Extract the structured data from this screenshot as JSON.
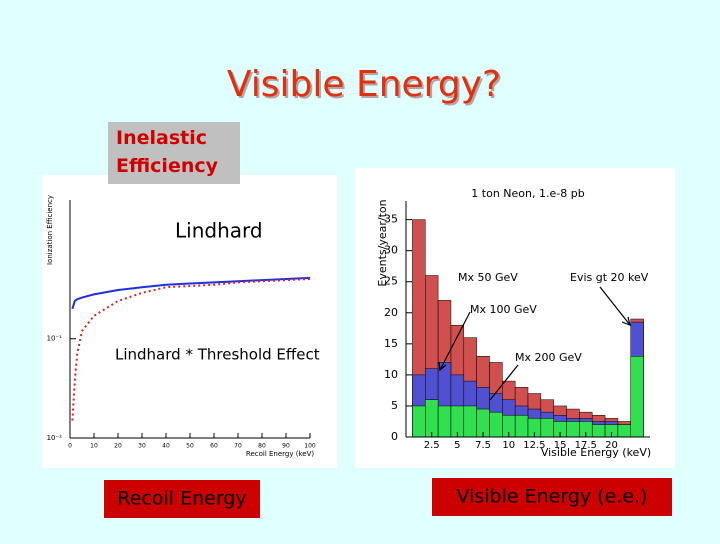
{
  "title": "Visible Energy?",
  "labels": {
    "inelastic": "Inelastic Efficiency",
    "recoil": "Recoil Energy",
    "visible": "Visible Energy (e.e.)"
  },
  "chart_data": [
    {
      "type": "line",
      "logy": true,
      "x_label": "Recoil Energy (keV)",
      "y_label": "Ionization Efficiency",
      "x": [
        1,
        2,
        3,
        5,
        10,
        20,
        30,
        40,
        50,
        60,
        70,
        80,
        90,
        100
      ],
      "series": [
        {
          "name": "Lindhard",
          "color": "#2030e0",
          "values": [
            0.2,
            0.24,
            0.25,
            0.26,
            0.28,
            0.31,
            0.33,
            0.35,
            0.36,
            0.37,
            0.38,
            0.39,
            0.4,
            0.41
          ]
        },
        {
          "name": "Lindhard * Threshold Effect",
          "color": "#e02020",
          "values": [
            0.015,
            0.038,
            0.07,
            0.12,
            0.17,
            0.24,
            0.29,
            0.33,
            0.34,
            0.35,
            0.37,
            0.38,
            0.39,
            0.4
          ]
        }
      ],
      "xlim": [
        0,
        100
      ],
      "xticks": [
        0,
        10,
        20,
        30,
        40,
        50,
        60,
        70,
        80,
        90,
        100
      ],
      "ylim": [
        0.01,
        2.5
      ],
      "yticks": [
        {
          "value": 0.01,
          "label": "10⁻²"
        },
        {
          "value": 0.1,
          "label": "10⁻¹"
        }
      ]
    },
    {
      "type": "histogram",
      "title": "1 ton Neon, 1.e-8 pb",
      "x_label": "Visible Energy (keV)",
      "y_label": "Events/year/ton",
      "bins": [
        0.625,
        1.875,
        3.125,
        4.375,
        5.625,
        6.875,
        8.125,
        9.375,
        10.625,
        11.875,
        13.125,
        14.375,
        15.625,
        16.875,
        18.125,
        19.375,
        20.625,
        21.875,
        23.125
      ],
      "series": [
        {
          "name": "Mx 50 GeV",
          "color": "#d05050",
          "values": [
            35,
            26,
            22,
            18,
            16,
            13,
            12,
            9,
            8,
            7,
            6,
            5,
            4.5,
            4,
            3.5,
            3,
            2.5,
            19
          ]
        },
        {
          "name": "Mx 100 GeV",
          "color": "#5050d0",
          "values": [
            10,
            11,
            12,
            10,
            9,
            8,
            7,
            6,
            5,
            4.5,
            4,
            3.5,
            3,
            3,
            2.5,
            2.5,
            2,
            18.5
          ]
        },
        {
          "name": "Mx 200 GeV",
          "color": "#30e050",
          "values": [
            5,
            6,
            5,
            5,
            5,
            4.5,
            4,
            3.5,
            3.5,
            3,
            3,
            2.5,
            2.5,
            2.5,
            2,
            2,
            2,
            13
          ]
        }
      ],
      "annotations": [
        "Evis gt 20 keV"
      ],
      "xlim": [
        0,
        23.75
      ],
      "xticks": [
        2.5,
        5,
        7.5,
        10,
        12.5,
        15,
        17.5,
        20
      ],
      "ylim": [
        0,
        38
      ],
      "yticks": [
        0,
        5,
        10,
        15,
        20,
        25,
        30,
        35
      ]
    }
  ]
}
